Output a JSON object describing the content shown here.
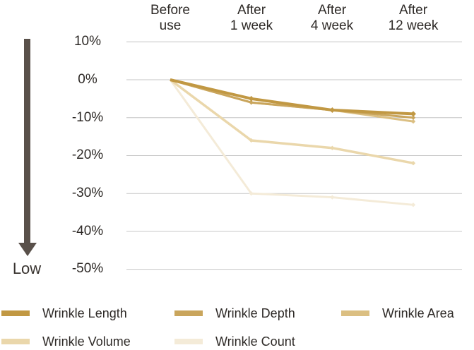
{
  "chart": {
    "direction_label": "Low"
  },
  "chart_data": {
    "type": "line",
    "title": "",
    "xlabel": "",
    "ylabel": "",
    "unit": "%",
    "categories": [
      "Before use",
      "After 1 week",
      "After 4 week",
      "After 12 week"
    ],
    "categories_display": [
      "Before\nuse",
      "After\n1 week",
      "After\n4 week",
      "After\n12 week"
    ],
    "ylim": [
      -50,
      10
    ],
    "grid": "horizontal",
    "gridline_color": "#c6c6c6",
    "legend_position": "bottom",
    "direction_label": "Low",
    "direction_arrow_color": "#59504a",
    "yticks": [
      {
        "value": 10,
        "label": "10%"
      },
      {
        "value": 0,
        "label": "0%"
      },
      {
        "value": -10,
        "label": "-10%"
      },
      {
        "value": -20,
        "label": "-20%"
      },
      {
        "value": -30,
        "label": "-30%"
      },
      {
        "value": -40,
        "label": "-40%"
      },
      {
        "value": -50,
        "label": "-50%"
      }
    ],
    "series": [
      {
        "name": "Wrinkle Length",
        "color": "#c19843",
        "values": [
          0,
          -5,
          -8,
          -9
        ]
      },
      {
        "name": "Wrinkle Depth",
        "color": "#c9a55c",
        "values": [
          0,
          -6,
          -8,
          -10
        ]
      },
      {
        "name": "Wrinkle Area",
        "color": "#dbbf82",
        "values": [
          0,
          -6,
          -8,
          -11
        ]
      },
      {
        "name": "Wrinkle Volume",
        "color": "#ead7ab",
        "values": [
          0,
          -16,
          -18,
          -22
        ]
      },
      {
        "name": "Wrinkle Count",
        "color": "#f4ebd8",
        "values": [
          0,
          -30,
          -31,
          -33
        ]
      }
    ]
  }
}
